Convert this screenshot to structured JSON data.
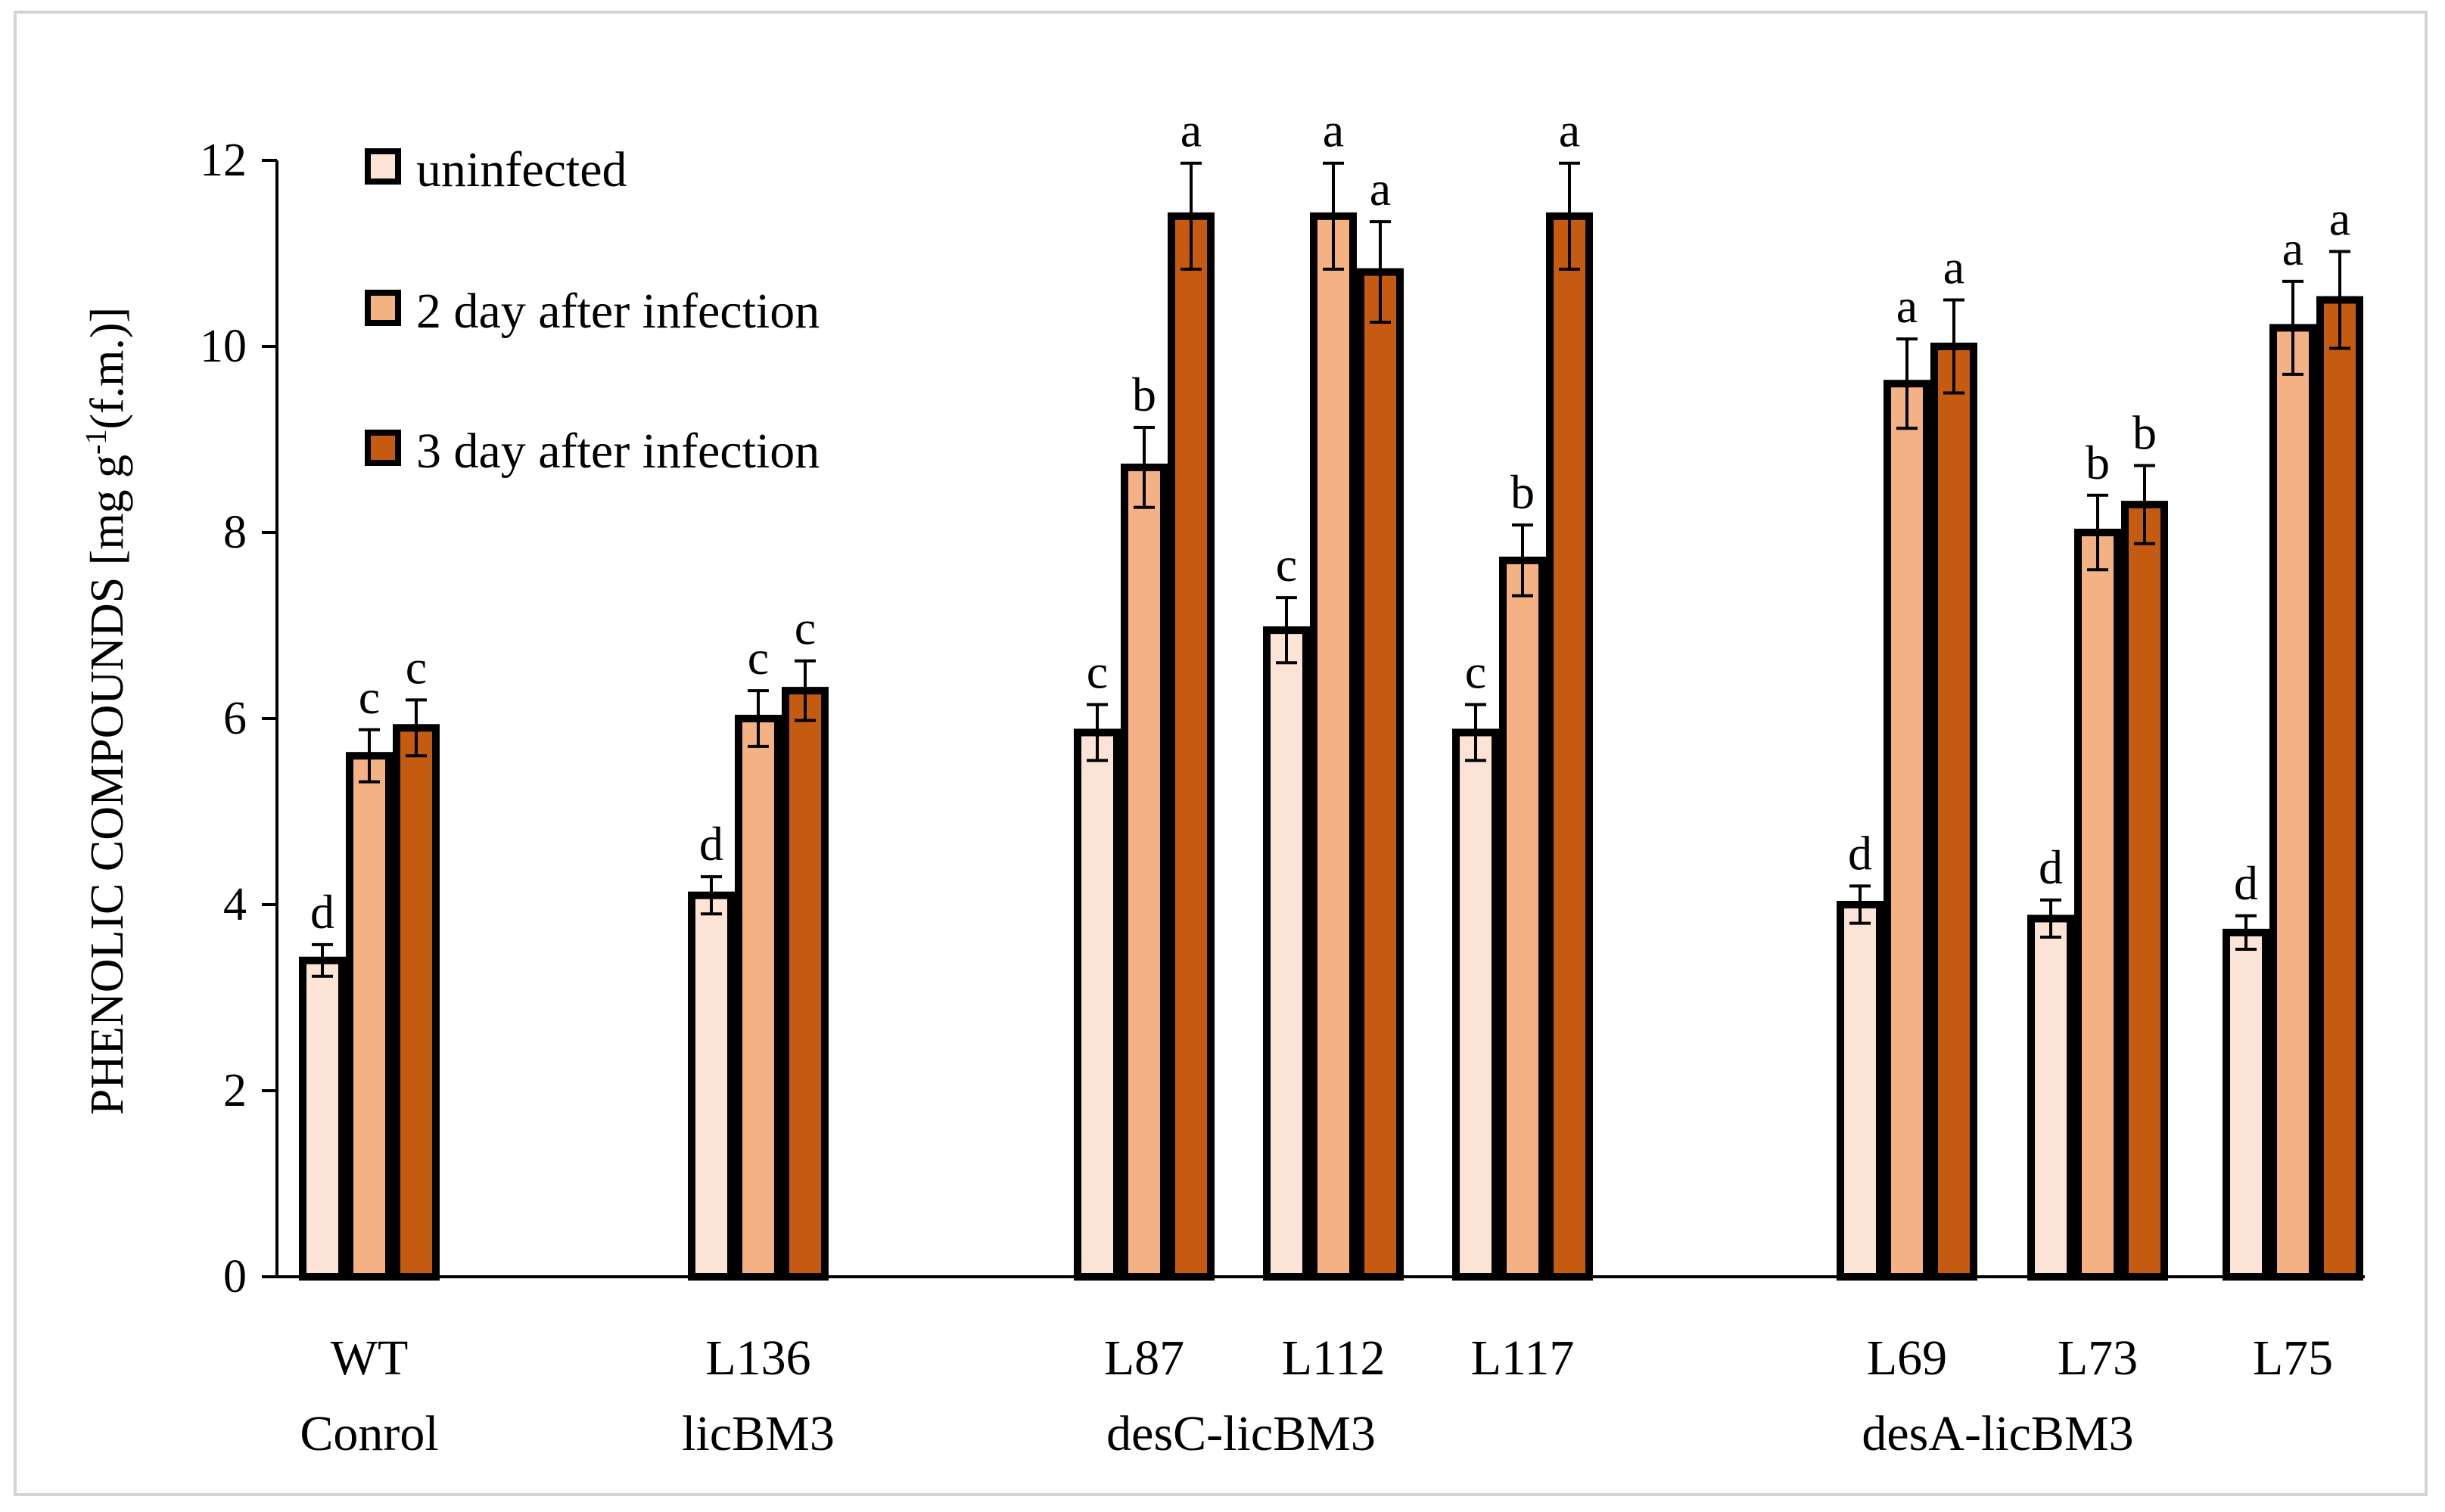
{
  "chart_data": {
    "type": "bar",
    "title": "",
    "ylabel": "PHENOLIC COMPOUNDS  [mg g",
    "ylabel_sup": "-1",
    "ylabel_tail": "(f.m.)]",
    "ylim": [
      0,
      12
    ],
    "yticks": [
      "0",
      "2",
      "4",
      "6",
      "8",
      "10",
      "12"
    ],
    "grid": false,
    "legend_position": "top-left",
    "categories": [
      "WT",
      "L136",
      "L87",
      "L112",
      "L117",
      "L69",
      "L73",
      "L75"
    ],
    "group_labels": [
      "Conrol",
      "licBM3",
      "desC-licBM3",
      "desA-licBM3"
    ],
    "series": [
      {
        "name": "uninfected",
        "color": "#fbe3d5",
        "values": [
          3.4,
          4.1,
          5.85,
          6.95,
          5.85,
          4.0,
          3.85,
          3.7
        ],
        "errors": [
          0.17,
          0.2,
          0.3,
          0.35,
          0.3,
          0.2,
          0.2,
          0.18
        ],
        "letters": [
          "d",
          "d",
          "c",
          "c",
          "c",
          "d",
          "d",
          "d"
        ]
      },
      {
        "name": "2 day after infection",
        "color": "#f4b183",
        "values": [
          5.6,
          6.0,
          8.7,
          11.4,
          7.7,
          9.6,
          8.0,
          10.2
        ],
        "errors": [
          0.28,
          0.3,
          0.43,
          0.57,
          0.38,
          0.48,
          0.4,
          0.5
        ],
        "letters": [
          "c",
          "c",
          "b",
          "a",
          "b",
          "a",
          "b",
          "a"
        ]
      },
      {
        "name": "3 day after infection",
        "color": "#c55a11",
        "values": [
          5.9,
          6.3,
          11.4,
          10.8,
          11.4,
          10.0,
          8.3,
          10.5
        ],
        "errors": [
          0.3,
          0.32,
          0.57,
          0.54,
          0.57,
          0.5,
          0.42,
          0.52
        ],
        "letters": [
          "c",
          "c",
          "a",
          "a",
          "a",
          "a",
          "b",
          "a"
        ]
      }
    ]
  }
}
